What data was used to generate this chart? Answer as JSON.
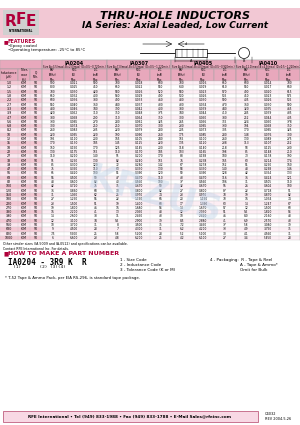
{
  "title1": "THRU-HOLE INDUCTORS",
  "title2": "IA Series: Axial Leaded, Low Current",
  "features_label": "FEATURES",
  "header_pink_bg": "#f2c8d4",
  "pink_bg": "#f5c8d4",
  "light_pink_row": "#fce8f0",
  "white": "#ffffff",
  "dark_red": "#b0003a",
  "black": "#000000",
  "col_header_bg": "#e8a8bc",
  "series_header_bg": "#e8a8bc",
  "series_groups": [
    "IA0204",
    "IA0307",
    "IA0405",
    "IA0410"
  ],
  "series_subtext": [
    "Size A=3.5(max),B=2.0(max)\n(D=0.5~0.720min.)",
    "Size A=7.0(max),B=3.5(max)\n(D=0.5~1.220min.)",
    "Size A=4.5(max),B=4.0(max)\n(D=0.5~0.920min.)",
    "Size A=11.0(max),B=4.5(max)\n(D=0.5~1.220min.)"
  ],
  "how_to": "HOW TO MAKE A PART NUMBER",
  "part_num_example": "IA0204 - 3R9 K  R",
  "part_num_sub": "  (1)       (2) (3)(4)",
  "part_codes": [
    "1 - Size Code",
    "2 - Inductance Code",
    "3 - Tolerance Code (K or M)"
  ],
  "part_codes_right": [
    "4 - Packaging:  R - Tape & Reel",
    "                        A - Tape & Ammo*",
    "                        Omit for Bulk"
  ],
  "note1": "* T-52 Tape & Ammo Pack, per EIA RS-296, is standard tape package.",
  "note2": "Other similar sizes (IA-5009 and IA-0512) and specifications can be available.\nContact RFE International Inc. For details.",
  "footer_text": "RFE International • Tel (949) 833-1988 • Fax (949) 833-1788 • E-Mail Sales@rfeinc.com",
  "footer_right": "C4032\nREV 2004.5.26",
  "table_data": {
    "left_cols": [
      "Inductance\n(μH)",
      "Toler-\nance\n(%)",
      "Q\nMin."
    ],
    "right_cols": [
      "SRF\n(MHz)\nMin.",
      "RDC\n(Ω)\nMax.",
      "IDC\n(mA)\nMax."
    ],
    "rows_ia0204": [
      [
        "1.0",
        "K,M",
        "50",
        "900",
        "0.021",
        "500"
      ],
      [
        "1.2",
        "K,M",
        "50",
        "800",
        "0.025",
        "450"
      ],
      [
        "1.5",
        "K,M",
        "50",
        "700",
        "0.030",
        "420"
      ],
      [
        "1.8",
        "K,M",
        "50",
        "650",
        "0.032",
        "400"
      ],
      [
        "2.2",
        "K,M",
        "50",
        "600",
        "0.036",
        "380"
      ],
      [
        "2.7",
        "K,M",
        "50",
        "550",
        "0.040",
        "360"
      ],
      [
        "3.3",
        "K,M",
        "50",
        "480",
        "0.046",
        "340"
      ],
      [
        "3.9",
        "K,M",
        "50",
        "420",
        "0.052",
        "310"
      ],
      [
        "4.7",
        "K,M",
        "50",
        "380",
        "0.058",
        "290"
      ],
      [
        "5.6",
        "K,M",
        "50",
        "330",
        "0.065",
        "270"
      ],
      [
        "6.8",
        "K,M",
        "50",
        "300",
        "0.074",
        "250"
      ],
      [
        "8.2",
        "K,M",
        "50",
        "260",
        "0.083",
        "235"
      ],
      [
        "10",
        "K,M",
        "50",
        "220",
        "0.095",
        "220"
      ],
      [
        "12",
        "K,M",
        "50",
        "195",
        "0.110",
        "200"
      ],
      [
        "15",
        "K,M",
        "50",
        "170",
        "0.130",
        "185"
      ],
      [
        "18",
        "K,M",
        "50",
        "150",
        "0.150",
        "170"
      ],
      [
        "22",
        "K,M",
        "50",
        "130",
        "0.175",
        "155"
      ],
      [
        "27",
        "K,M",
        "50",
        "110",
        "0.210",
        "140"
      ],
      [
        "33",
        "K,M",
        "50",
        "95",
        "0.250",
        "130"
      ],
      [
        "39",
        "K,M",
        "50",
        "85",
        "0.300",
        "120"
      ],
      [
        "47",
        "K,M",
        "50",
        "75",
        "0.350",
        "110"
      ],
      [
        "56",
        "K,M",
        "50",
        "65",
        "0.420",
        "100"
      ],
      [
        "68",
        "K,M",
        "50",
        "56",
        "0.500",
        "90"
      ],
      [
        "82",
        "K,M",
        "50",
        "48",
        "0.600",
        "82"
      ],
      [
        "100",
        "K,M",
        "50",
        "42",
        "0.720",
        "75"
      ],
      [
        "120",
        "K,M",
        "50",
        "36",
        "0.860",
        "68"
      ],
      [
        "150",
        "K,M",
        "50",
        "31",
        "1.050",
        "62"
      ],
      [
        "180",
        "K,M",
        "50",
        "27",
        "1.250",
        "56"
      ],
      [
        "220",
        "K,M",
        "50",
        "23",
        "1.500",
        "51"
      ],
      [
        "270",
        "K,M",
        "50",
        "19",
        "1.800",
        "46"
      ],
      [
        "330",
        "K,M",
        "50",
        "16",
        "2.200",
        "41"
      ],
      [
        "390",
        "K,M",
        "50",
        "14",
        "2.600",
        "38"
      ],
      [
        "470",
        "K,M",
        "50",
        "12",
        "3.100",
        "34"
      ],
      [
        "560",
        "K,M",
        "50",
        "10",
        "3.700",
        "31"
      ],
      [
        "680",
        "K,M",
        "50",
        "9",
        "4.500",
        "28"
      ],
      [
        "820",
        "K,M",
        "50",
        "7.5",
        "5.500",
        "25"
      ],
      [
        "1000",
        "K,M",
        "50",
        "6",
        "6.600",
        "23"
      ]
    ],
    "rows_ia0307": [
      [
        "1.0",
        "K,M",
        "55",
        "700",
        "0.018",
        "600"
      ],
      [
        "1.2",
        "K,M",
        "55",
        "650",
        "0.022",
        "550"
      ],
      [
        "1.5",
        "K,M",
        "55",
        "580",
        "0.026",
        "520"
      ],
      [
        "1.8",
        "K,M",
        "55",
        "540",
        "0.029",
        "490"
      ],
      [
        "2.2",
        "K,M",
        "55",
        "490",
        "0.033",
        "460"
      ],
      [
        "2.7",
        "K,M",
        "55",
        "440",
        "0.037",
        "430"
      ],
      [
        "3.3",
        "K,M",
        "55",
        "390",
        "0.042",
        "400"
      ],
      [
        "3.9",
        "K,M",
        "55",
        "350",
        "0.048",
        "375"
      ],
      [
        "4.7",
        "K,M",
        "55",
        "310",
        "0.054",
        "350"
      ],
      [
        "5.6",
        "K,M",
        "55",
        "280",
        "0.061",
        "325"
      ],
      [
        "6.8",
        "K,M",
        "55",
        "250",
        "0.070",
        "300"
      ],
      [
        "8.2",
        "K,M",
        "55",
        "220",
        "0.079",
        "280"
      ],
      [
        "10",
        "K,M",
        "55",
        "190",
        "0.090",
        "260"
      ],
      [
        "12",
        "K,M",
        "55",
        "165",
        "0.105",
        "240"
      ],
      [
        "15",
        "K,M",
        "55",
        "145",
        "0.125",
        "220"
      ],
      [
        "18",
        "K,M",
        "55",
        "125",
        "0.145",
        "200"
      ],
      [
        "22",
        "K,M",
        "55",
        "110",
        "0.170",
        "185"
      ],
      [
        "27",
        "K,M",
        "55",
        "95",
        "0.200",
        "170"
      ],
      [
        "33",
        "K,M",
        "55",
        "82",
        "0.240",
        "155"
      ],
      [
        "39",
        "K,M",
        "55",
        "72",
        "0.280",
        "142"
      ],
      [
        "47",
        "K,M",
        "55",
        "63",
        "0.330",
        "130"
      ],
      [
        "56",
        "K,M",
        "55",
        "55",
        "0.390",
        "120"
      ],
      [
        "68",
        "K,M",
        "55",
        "47",
        "0.470",
        "110"
      ],
      [
        "82",
        "K,M",
        "55",
        "40",
        "0.560",
        "100"
      ],
      [
        "100",
        "K,M",
        "55",
        "35",
        "0.670",
        "90"
      ],
      [
        "120",
        "K,M",
        "55",
        "30",
        "0.800",
        "82"
      ],
      [
        "150",
        "K,M",
        "55",
        "25",
        "0.970",
        "74"
      ],
      [
        "180",
        "K,M",
        "55",
        "22",
        "1.150",
        "66"
      ],
      [
        "220",
        "K,M",
        "55",
        "19",
        "1.400",
        "60"
      ],
      [
        "270",
        "K,M",
        "55",
        "16",
        "1.680",
        "54"
      ],
      [
        "330",
        "K,M",
        "55",
        "13",
        "2.050",
        "48"
      ],
      [
        "390",
        "K,M",
        "55",
        "11",
        "2.450",
        "43"
      ],
      [
        "470",
        "K,M",
        "55",
        "9.5",
        "2.900",
        "39"
      ],
      [
        "560",
        "K,M",
        "55",
        "8",
        "3.500",
        "35"
      ],
      [
        "680",
        "K,M",
        "55",
        "7",
        "4.300",
        "31"
      ],
      [
        "820",
        "K,M",
        "55",
        "5.8",
        "5.200",
        "28"
      ],
      [
        "1000",
        "K,M",
        "55",
        "4.8",
        "6.200",
        "25"
      ]
    ],
    "rows_ia0405": [
      [
        "1.0",
        "K,M",
        "60",
        "700",
        "0.016",
        "650"
      ],
      [
        "1.2",
        "K,M",
        "60",
        "640",
        "0.019",
        "610"
      ],
      [
        "1.5",
        "K,M",
        "60",
        "580",
        "0.023",
        "570"
      ],
      [
        "1.8",
        "K,M",
        "60",
        "530",
        "0.026",
        "535"
      ],
      [
        "2.2",
        "K,M",
        "60",
        "480",
        "0.030",
        "500"
      ],
      [
        "2.7",
        "K,M",
        "60",
        "430",
        "0.034",
        "470"
      ],
      [
        "3.3",
        "K,M",
        "60",
        "380",
        "0.039",
        "440"
      ],
      [
        "3.9",
        "K,M",
        "60",
        "340",
        "0.044",
        "410"
      ],
      [
        "4.7",
        "K,M",
        "60",
        "300",
        "0.050",
        "380"
      ],
      [
        "5.6",
        "K,M",
        "60",
        "265",
        "0.056",
        "355"
      ],
      [
        "6.8",
        "K,M",
        "60",
        "230",
        "0.065",
        "330"
      ],
      [
        "8.2",
        "K,M",
        "60",
        "205",
        "0.073",
        "305"
      ],
      [
        "10",
        "K,M",
        "60",
        "175",
        "0.085",
        "280"
      ],
      [
        "12",
        "K,M",
        "60",
        "155",
        "0.100",
        "260"
      ],
      [
        "15",
        "K,M",
        "60",
        "135",
        "0.120",
        "238"
      ],
      [
        "18",
        "K,M",
        "60",
        "118",
        "0.140",
        "218"
      ],
      [
        "22",
        "K,M",
        "60",
        "103",
        "0.165",
        "198"
      ],
      [
        "27",
        "K,M",
        "60",
        "88",
        "0.198",
        "180"
      ],
      [
        "33",
        "K,M",
        "60",
        "76",
        "0.238",
        "165"
      ],
      [
        "39",
        "K,M",
        "60",
        "67",
        "0.278",
        "152"
      ],
      [
        "47",
        "K,M",
        "60",
        "58",
        "0.330",
        "140"
      ],
      [
        "56",
        "K,M",
        "60",
        "50",
        "0.390",
        "128"
      ],
      [
        "68",
        "K,M",
        "60",
        "43",
        "0.470",
        "116"
      ],
      [
        "82",
        "K,M",
        "60",
        "37",
        "0.560",
        "106"
      ],
      [
        "100",
        "K,M",
        "60",
        "32",
        "0.670",
        "96"
      ],
      [
        "120",
        "K,M",
        "60",
        "27",
        "0.800",
        "87"
      ],
      [
        "150",
        "K,M",
        "60",
        "23",
        "0.970",
        "78"
      ],
      [
        "180",
        "K,M",
        "60",
        "20",
        "1.150",
        "70"
      ],
      [
        "220",
        "K,M",
        "60",
        "17",
        "1.390",
        "63"
      ],
      [
        "270",
        "K,M",
        "60",
        "14",
        "1.670",
        "57"
      ],
      [
        "330",
        "K,M",
        "60",
        "12",
        "2.030",
        "51"
      ],
      [
        "390",
        "K,M",
        "60",
        "10",
        "2.420",
        "46"
      ],
      [
        "470",
        "K,M",
        "60",
        "8.5",
        "2.880",
        "41"
      ],
      [
        "560",
        "K,M",
        "60",
        "7.2",
        "3.450",
        "37"
      ],
      [
        "680",
        "K,M",
        "60",
        "6.2",
        "4.200",
        "33"
      ],
      [
        "820",
        "K,M",
        "60",
        "5.2",
        "5.100",
        "30"
      ],
      [
        "1000",
        "K,M",
        "60",
        "4.2",
        "6.100",
        "27"
      ]
    ],
    "rows_ia0410": [
      [
        "1.0",
        "K,M",
        "60",
        "600",
        "0.014",
        "700"
      ],
      [
        "1.2",
        "K,M",
        "60",
        "550",
        "0.017",
        "660"
      ],
      [
        "1.5",
        "K,M",
        "60",
        "490",
        "0.020",
        "615"
      ],
      [
        "1.8",
        "K,M",
        "60",
        "450",
        "0.023",
        "575"
      ],
      [
        "2.2",
        "K,M",
        "60",
        "405",
        "0.026",
        "535"
      ],
      [
        "2.7",
        "K,M",
        "60",
        "360",
        "0.030",
        "500"
      ],
      [
        "3.3",
        "K,M",
        "60",
        "320",
        "0.035",
        "465"
      ],
      [
        "3.9",
        "K,M",
        "60",
        "285",
        "0.039",
        "435"
      ],
      [
        "4.7",
        "K,M",
        "60",
        "252",
        "0.044",
        "405"
      ],
      [
        "5.6",
        "K,M",
        "60",
        "224",
        "0.050",
        "378"
      ],
      [
        "6.8",
        "K,M",
        "60",
        "194",
        "0.058",
        "350"
      ],
      [
        "8.2",
        "K,M",
        "60",
        "170",
        "0.065",
        "325"
      ],
      [
        "10",
        "K,M",
        "60",
        "148",
        "0.076",
        "300"
      ],
      [
        "12",
        "K,M",
        "60",
        "130",
        "0.089",
        "275"
      ],
      [
        "15",
        "K,M",
        "60",
        "113",
        "0.107",
        "252"
      ],
      [
        "18",
        "K,M",
        "60",
        "98",
        "0.125",
        "230"
      ],
      [
        "22",
        "K,M",
        "60",
        "85",
        "0.148",
        "210"
      ],
      [
        "27",
        "K,M",
        "60",
        "73",
        "0.178",
        "190"
      ],
      [
        "33",
        "K,M",
        "60",
        "63",
        "0.214",
        "174"
      ],
      [
        "39",
        "K,M",
        "60",
        "55",
        "0.250",
        "160"
      ],
      [
        "47",
        "K,M",
        "60",
        "48",
        "0.298",
        "146"
      ],
      [
        "56",
        "K,M",
        "60",
        "42",
        "0.354",
        "133"
      ],
      [
        "68",
        "K,M",
        "60",
        "36",
        "0.424",
        "121"
      ],
      [
        "82",
        "K,M",
        "60",
        "31",
        "0.505",
        "110"
      ],
      [
        "100",
        "K,M",
        "60",
        "26",
        "0.602",
        "100"
      ],
      [
        "120",
        "K,M",
        "60",
        "22",
        "0.718",
        "91"
      ],
      [
        "150",
        "K,M",
        "60",
        "19",
        "0.870",
        "82"
      ],
      [
        "180",
        "K,M",
        "60",
        "16",
        "1.034",
        "74"
      ],
      [
        "220",
        "K,M",
        "60",
        "14",
        "1.247",
        "67"
      ],
      [
        "270",
        "K,M",
        "60",
        "12",
        "1.500",
        "60"
      ],
      [
        "330",
        "K,M",
        "60",
        "9.5",
        "1.820",
        "54"
      ],
      [
        "390",
        "K,M",
        "60",
        "8.0",
        "2.160",
        "48"
      ],
      [
        "470",
        "K,M",
        "60",
        "6.9",
        "2.570",
        "43"
      ],
      [
        "560",
        "K,M",
        "60",
        "5.8",
        "3.080",
        "39"
      ],
      [
        "680",
        "K,M",
        "60",
        "4.9",
        "3.750",
        "35"
      ],
      [
        "820",
        "K,M",
        "60",
        "4.1",
        "4.560",
        "31"
      ],
      [
        "1000",
        "K,M",
        "60",
        "3.4",
        "5.450",
        "28"
      ]
    ]
  }
}
